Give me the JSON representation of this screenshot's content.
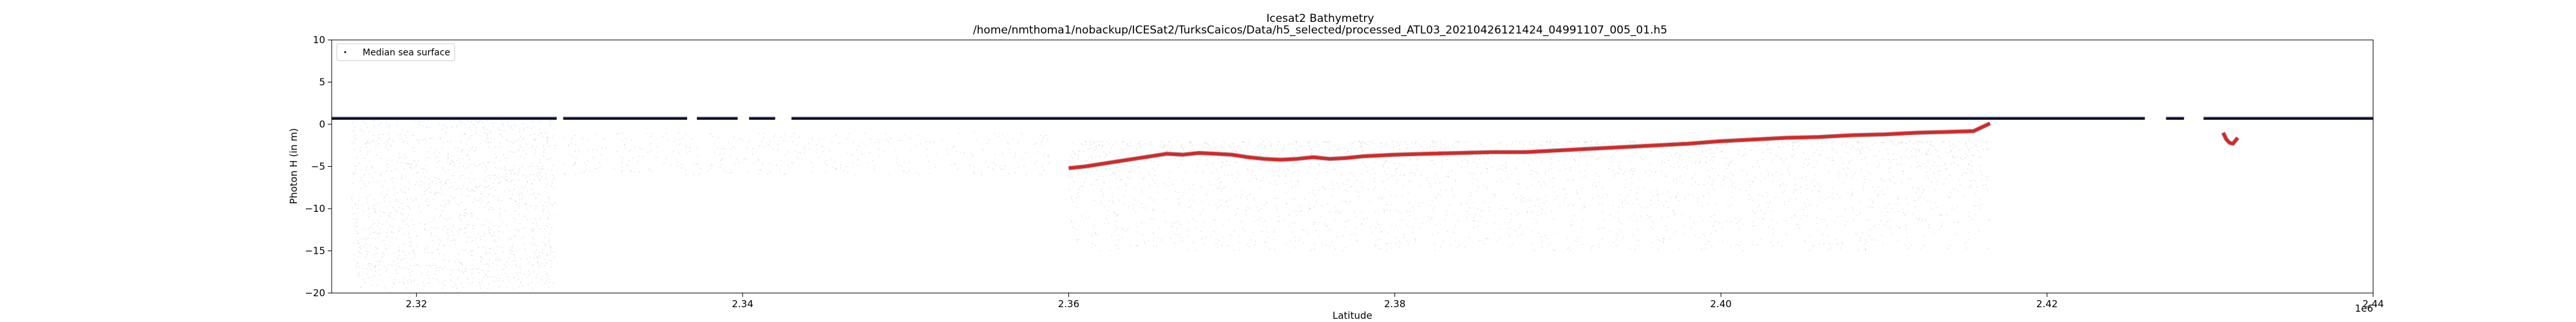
{
  "chart_data": {
    "type": "scatter",
    "title": "Icesat2 Bathymetry",
    "subtitle": "/home/nmthoma1/nobackup/ICESat2/TurksCaicos/Data/h5_selected/processed_ATL03_20210426121424_04991107_005_01.h5",
    "xlabel": "Latitude",
    "ylabel": "Photon H (in m)",
    "x_offset_label": "1e6",
    "xlim": [
      2314800,
      2440000
    ],
    "ylim": [
      -20,
      10
    ],
    "xticks": [
      2320000,
      2340000,
      2360000,
      2380000,
      2400000,
      2420000,
      2440000
    ],
    "xtick_labels": [
      "2.32",
      "2.34",
      "2.36",
      "2.38",
      "2.40",
      "2.42",
      "2.44"
    ],
    "yticks": [
      10,
      5,
      0,
      -5,
      -10,
      -15,
      -20
    ],
    "ytick_labels": [
      "10",
      "5",
      "0",
      "−5",
      "−10",
      "−15",
      "−20"
    ],
    "grid": false,
    "legend_placement": "top-left",
    "legend": [
      {
        "label": "Median sea surface",
        "marker": "dot",
        "color": "#000000"
      }
    ],
    "series": [
      {
        "name": "Median sea surface",
        "color": "#000000",
        "style": "points",
        "segments": [
          [
            2314800,
            2328600
          ],
          [
            2329000,
            2336600
          ],
          [
            2337200,
            2339700
          ],
          [
            2340400,
            2342000
          ],
          [
            2343000,
            2426000
          ],
          [
            2427300,
            2428400
          ],
          [
            2429600,
            2440000
          ]
        ],
        "y": 0.7
      },
      {
        "color": "#1f2d8a",
        "style": "surface-band",
        "segments": [
          [
            2314800,
            2328600
          ],
          [
            2329000,
            2336600
          ],
          [
            2337200,
            2339700
          ],
          [
            2340400,
            2342000
          ],
          [
            2343000,
            2426000
          ],
          [
            2427300,
            2428400
          ],
          [
            2429600,
            2440000
          ]
        ],
        "y": 0.8
      },
      {
        "color": "#d62728",
        "style": "line",
        "x": [
          2360000,
          2361000,
          2362000,
          2363000,
          2364000,
          2365000,
          2366000,
          2367000,
          2368000,
          2369000,
          2370000,
          2371000,
          2372000,
          2373000,
          2374000,
          2375000,
          2376000,
          2377000,
          2378000,
          2380000,
          2382000,
          2384000,
          2386000,
          2388000,
          2390000,
          2392000,
          2394000,
          2396000,
          2398000,
          2400000,
          2402000,
          2404000,
          2406000,
          2408000,
          2410000,
          2412000,
          2414000,
          2415500,
          2416500
        ],
        "y": [
          -5.2,
          -5.0,
          -4.7,
          -4.4,
          -4.1,
          -3.8,
          -3.5,
          -3.6,
          -3.4,
          -3.5,
          -3.6,
          -3.9,
          -4.1,
          -4.2,
          -4.1,
          -3.9,
          -4.1,
          -4.0,
          -3.8,
          -3.6,
          -3.5,
          -3.4,
          -3.3,
          -3.3,
          -3.1,
          -2.9,
          -2.7,
          -2.5,
          -2.3,
          -2.0,
          -1.8,
          -1.6,
          -1.5,
          -1.3,
          -1.2,
          -1.0,
          -0.9,
          -0.8,
          0.1
        ]
      },
      {
        "color": "#d62728",
        "style": "line",
        "x": [
          2430800,
          2431000,
          2431200,
          2431400,
          2431700
        ],
        "y": [
          -1.0,
          -1.8,
          -2.2,
          -2.3,
          -1.6
        ]
      }
    ]
  }
}
